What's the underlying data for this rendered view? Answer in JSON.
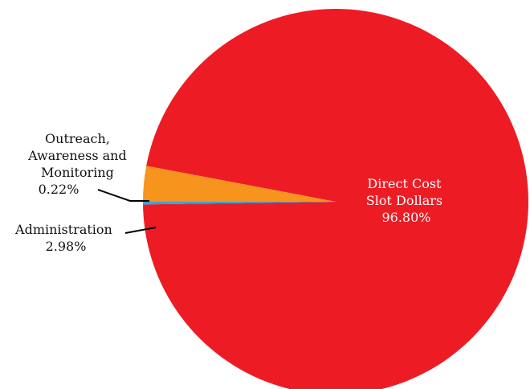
{
  "chart_data": {
    "type": "pie",
    "slices": [
      {
        "label": "Direct Cost Slot Dollars",
        "value": 96.8,
        "display": [
          "Direct Cost",
          "Slot Dollars",
          "96.80%"
        ],
        "color": "#ED1C24"
      },
      {
        "label": "Outreach, Awareness and Monitoring",
        "value": 0.22,
        "display": [
          "Outreach,",
          "Awareness and",
          "Monitoring",
          "0.22%"
        ],
        "color": "#29A9E0"
      },
      {
        "label": "Administration",
        "value": 2.98,
        "display": [
          "Administration",
          "2.98%"
        ],
        "color": "#F7941D"
      }
    ]
  }
}
